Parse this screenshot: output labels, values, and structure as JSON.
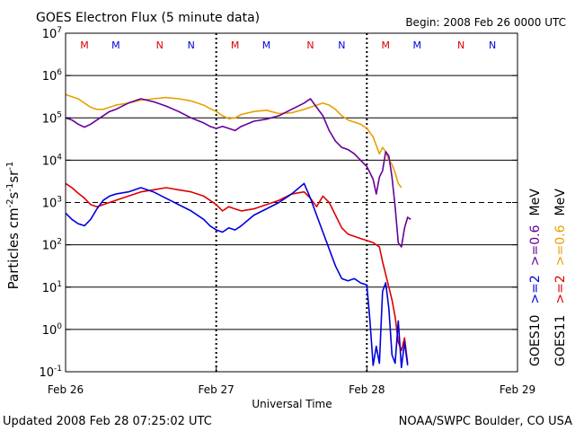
{
  "chart_data": {
    "type": "line",
    "title": "GOES Electron Flux (5 minute data)",
    "begin_label": "Begin: 2008 Feb 26 0000 UTC",
    "xlabel": "Universal Time",
    "ylabel_parts": [
      "Particles cm",
      "-2",
      "s",
      "-1",
      "sr",
      "-1"
    ],
    "x_unit": "hours since 2008 Feb 26 0000 UTC",
    "xlim": [
      0,
      72
    ],
    "x_ticks": [
      {
        "x": 0,
        "label": "Feb 26"
      },
      {
        "x": 24,
        "label": "Feb 27"
      },
      {
        "x": 48,
        "label": "Feb 28"
      },
      {
        "x": 72,
        "label": "Feb 29"
      }
    ],
    "y_scale": "log10",
    "ylim_exp": [
      -1,
      7
    ],
    "y_ticks": [
      {
        "exp": 7,
        "label": "10",
        "sup": "7"
      },
      {
        "exp": 6,
        "label": "10",
        "sup": "6"
      },
      {
        "exp": 5,
        "label": "10",
        "sup": "5"
      },
      {
        "exp": 4,
        "label": "10",
        "sup": "4"
      },
      {
        "exp": 3,
        "label": "10",
        "sup": "3"
      },
      {
        "exp": 2,
        "label": "10",
        "sup": "2"
      },
      {
        "exp": 1,
        "label": "10",
        "sup": "1"
      },
      {
        "exp": 0,
        "label": "10",
        "sup": "0"
      },
      {
        "exp": -1,
        "label": "10",
        "sup": "-1"
      }
    ],
    "solid_gridlines_exp": [
      6,
      5,
      4,
      2,
      1,
      0
    ],
    "dashed_gridlines_exp": [
      3
    ],
    "day_boundaries": [
      24,
      48
    ],
    "local_time_markers": [
      {
        "x": 3,
        "letter": "M",
        "color": "#dd0000"
      },
      {
        "x": 8,
        "letter": "M",
        "color": "#0000dd"
      },
      {
        "x": 15,
        "letter": "N",
        "color": "#dd0000"
      },
      {
        "x": 20,
        "letter": "N",
        "color": "#0000dd"
      },
      {
        "x": 27,
        "letter": "M",
        "color": "#dd0000"
      },
      {
        "x": 32,
        "letter": "M",
        "color": "#0000dd"
      },
      {
        "x": 39,
        "letter": "N",
        "color": "#dd0000"
      },
      {
        "x": 44,
        "letter": "N",
        "color": "#0000dd"
      },
      {
        "x": 51,
        "letter": "M",
        "color": "#dd0000"
      },
      {
        "x": 56,
        "letter": "M",
        "color": "#0000dd"
      },
      {
        "x": 63,
        "letter": "N",
        "color": "#dd0000"
      },
      {
        "x": 68,
        "letter": "N",
        "color": "#0000dd"
      }
    ],
    "right_legend": {
      "col1": [
        {
          "text": "GOES10",
          "color": "#000000"
        },
        {
          "text": ">=2",
          "color": "#0000dd"
        },
        {
          "text": ">=0.6",
          "color": "#660099"
        },
        {
          "text": "MeV",
          "color": "#000000"
        }
      ],
      "col2": [
        {
          "text": "GOES11",
          "color": "#000000"
        },
        {
          "text": ">=2",
          "color": "#dd0000"
        },
        {
          "text": ">=0.6",
          "color": "#e8a000"
        },
        {
          "text": "MeV",
          "color": "#000000"
        }
      ]
    },
    "series": [
      {
        "name": "GOES11 >=0.6 MeV",
        "color": "#e8a000",
        "points": [
          [
            0,
            5.55
          ],
          [
            1,
            5.5
          ],
          [
            2,
            5.45
          ],
          [
            3,
            5.35
          ],
          [
            4,
            5.25
          ],
          [
            5,
            5.2
          ],
          [
            6,
            5.2
          ],
          [
            7,
            5.25
          ],
          [
            8,
            5.3
          ],
          [
            10,
            5.35
          ],
          [
            12,
            5.42
          ],
          [
            14,
            5.45
          ],
          [
            16,
            5.48
          ],
          [
            18,
            5.45
          ],
          [
            20,
            5.4
          ],
          [
            22,
            5.3
          ],
          [
            23,
            5.22
          ],
          [
            24,
            5.15
          ],
          [
            25,
            5.05
          ],
          [
            26,
            4.98
          ],
          [
            27,
            5.0
          ],
          [
            28,
            5.08
          ],
          [
            30,
            5.15
          ],
          [
            32,
            5.18
          ],
          [
            34,
            5.1
          ],
          [
            36,
            5.12
          ],
          [
            38,
            5.2
          ],
          [
            40,
            5.3
          ],
          [
            41,
            5.35
          ],
          [
            42,
            5.3
          ],
          [
            43,
            5.2
          ],
          [
            44,
            5.05
          ],
          [
            45,
            4.95
          ],
          [
            46,
            4.9
          ],
          [
            47,
            4.85
          ],
          [
            48,
            4.75
          ],
          [
            49,
            4.55
          ],
          [
            49.5,
            4.35
          ],
          [
            50,
            4.15
          ],
          [
            50.5,
            4.3
          ],
          [
            51,
            4.2
          ],
          [
            51.5,
            4.0
          ],
          [
            52,
            3.9
          ],
          [
            52.5,
            3.7
          ],
          [
            53,
            3.45
          ],
          [
            53.5,
            3.35
          ]
        ]
      },
      {
        "name": "GOES10 >=0.6 MeV",
        "color": "#660099",
        "points": [
          [
            0,
            5.0
          ],
          [
            1,
            4.95
          ],
          [
            2,
            4.85
          ],
          [
            3,
            4.78
          ],
          [
            4,
            4.85
          ],
          [
            5,
            4.95
          ],
          [
            6,
            5.05
          ],
          [
            7,
            5.15
          ],
          [
            8,
            5.2
          ],
          [
            10,
            5.35
          ],
          [
            12,
            5.45
          ],
          [
            14,
            5.38
          ],
          [
            16,
            5.28
          ],
          [
            18,
            5.15
          ],
          [
            20,
            5.0
          ],
          [
            22,
            4.88
          ],
          [
            23,
            4.8
          ],
          [
            24,
            4.75
          ],
          [
            25,
            4.8
          ],
          [
            26,
            4.75
          ],
          [
            27,
            4.7
          ],
          [
            28,
            4.8
          ],
          [
            30,
            4.92
          ],
          [
            32,
            4.97
          ],
          [
            34,
            5.05
          ],
          [
            36,
            5.2
          ],
          [
            38,
            5.35
          ],
          [
            39,
            5.45
          ],
          [
            40,
            5.25
          ],
          [
            41,
            5.05
          ],
          [
            42,
            4.7
          ],
          [
            43,
            4.45
          ],
          [
            44,
            4.3
          ],
          [
            45,
            4.25
          ],
          [
            46,
            4.15
          ],
          [
            47,
            4.0
          ],
          [
            48,
            3.85
          ],
          [
            49,
            3.55
          ],
          [
            49.5,
            3.2
          ],
          [
            50,
            3.6
          ],
          [
            50.5,
            3.75
          ],
          [
            51,
            4.2
          ],
          [
            51.5,
            4.1
          ],
          [
            52,
            3.6
          ],
          [
            52.5,
            2.9
          ],
          [
            53,
            2.05
          ],
          [
            53.5,
            1.95
          ],
          [
            54,
            2.4
          ],
          [
            54.5,
            2.65
          ],
          [
            55,
            2.6
          ]
        ]
      },
      {
        "name": "GOES11 >=2 MeV",
        "color": "#dd0000",
        "points": [
          [
            0,
            3.45
          ],
          [
            1,
            3.35
          ],
          [
            2,
            3.22
          ],
          [
            3,
            3.1
          ],
          [
            4,
            2.95
          ],
          [
            5,
            2.9
          ],
          [
            6,
            2.95
          ],
          [
            7,
            3.0
          ],
          [
            8,
            3.05
          ],
          [
            10,
            3.15
          ],
          [
            12,
            3.25
          ],
          [
            14,
            3.3
          ],
          [
            16,
            3.35
          ],
          [
            18,
            3.3
          ],
          [
            20,
            3.25
          ],
          [
            22,
            3.15
          ],
          [
            23,
            3.05
          ],
          [
            24,
            2.95
          ],
          [
            25,
            2.8
          ],
          [
            26,
            2.9
          ],
          [
            27,
            2.85
          ],
          [
            28,
            2.8
          ],
          [
            30,
            2.85
          ],
          [
            32,
            2.95
          ],
          [
            34,
            3.05
          ],
          [
            36,
            3.2
          ],
          [
            38,
            3.25
          ],
          [
            39,
            3.1
          ],
          [
            40,
            2.9
          ],
          [
            41,
            3.15
          ],
          [
            42,
            3.0
          ],
          [
            43,
            2.7
          ],
          [
            44,
            2.4
          ],
          [
            45,
            2.25
          ],
          [
            46,
            2.2
          ],
          [
            47,
            2.15
          ],
          [
            48,
            2.1
          ],
          [
            49,
            2.05
          ],
          [
            50,
            1.95
          ],
          [
            50.5,
            1.6
          ],
          [
            51,
            1.3
          ],
          [
            51.5,
            1.0
          ],
          [
            52,
            0.7
          ],
          [
            52.5,
            0.3
          ],
          [
            53,
            -0.3
          ],
          [
            53.5,
            -0.5
          ],
          [
            54,
            -0.2
          ],
          [
            54.5,
            -0.8
          ]
        ]
      },
      {
        "name": "GOES10 >=2 MeV",
        "color": "#0000dd",
        "points": [
          [
            0,
            2.75
          ],
          [
            1,
            2.6
          ],
          [
            2,
            2.5
          ],
          [
            3,
            2.45
          ],
          [
            4,
            2.6
          ],
          [
            5,
            2.85
          ],
          [
            6,
            3.05
          ],
          [
            7,
            3.15
          ],
          [
            8,
            3.2
          ],
          [
            10,
            3.25
          ],
          [
            12,
            3.35
          ],
          [
            14,
            3.25
          ],
          [
            16,
            3.1
          ],
          [
            18,
            2.95
          ],
          [
            20,
            2.8
          ],
          [
            22,
            2.6
          ],
          [
            23,
            2.45
          ],
          [
            24,
            2.35
          ],
          [
            25,
            2.3
          ],
          [
            26,
            2.4
          ],
          [
            27,
            2.35
          ],
          [
            28,
            2.45
          ],
          [
            30,
            2.7
          ],
          [
            32,
            2.85
          ],
          [
            34,
            3.0
          ],
          [
            36,
            3.2
          ],
          [
            38,
            3.45
          ],
          [
            39,
            3.1
          ],
          [
            40,
            2.7
          ],
          [
            41,
            2.3
          ],
          [
            42,
            1.9
          ],
          [
            43,
            1.5
          ],
          [
            44,
            1.2
          ],
          [
            45,
            1.15
          ],
          [
            46,
            1.2
          ],
          [
            47,
            1.1
          ],
          [
            48,
            1.05
          ],
          [
            48.5,
            0.2
          ],
          [
            49,
            -0.85
          ],
          [
            49.5,
            -0.4
          ],
          [
            50,
            -0.8
          ],
          [
            50.5,
            0.9
          ],
          [
            51,
            1.1
          ],
          [
            51.5,
            0.5
          ],
          [
            52,
            -0.6
          ],
          [
            52.5,
            -0.8
          ],
          [
            53,
            0.2
          ],
          [
            53.5,
            -0.9
          ],
          [
            54,
            -0.3
          ],
          [
            54.5,
            -0.85
          ]
        ]
      }
    ]
  },
  "footer": {
    "updated": "Updated 2008 Feb 28 07:25:02 UTC",
    "credit": "NOAA/SWPC Boulder, CO USA"
  }
}
